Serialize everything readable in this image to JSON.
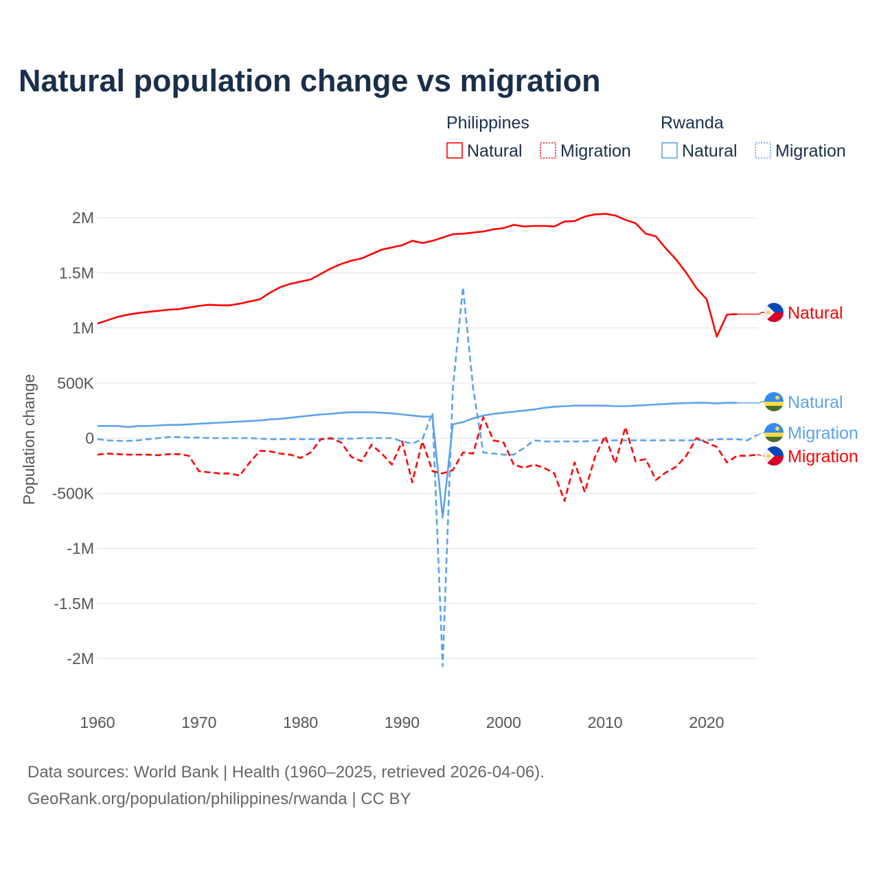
{
  "title": "Natural population change vs migration",
  "legend": {
    "groups": [
      {
        "name": "Philippines",
        "items": [
          {
            "label": "Natural",
            "style": "solid"
          },
          {
            "label": "Migration",
            "style": "dotted"
          }
        ],
        "color": "#ff0000"
      },
      {
        "name": "Rwanda",
        "items": [
          {
            "label": "Natural",
            "style": "solid"
          },
          {
            "label": "Migration",
            "style": "dotted"
          }
        ],
        "color": "#5ba3ea"
      }
    ]
  },
  "footer": {
    "line1": "Data sources: World Bank | Health (1960–2025, retrieved 2026-04-06).",
    "line2": "GeoRank.org/population/philippines/rwanda | CC BY"
  },
  "chart_data": {
    "type": "line",
    "title": "Natural population change vs migration",
    "xlabel": "",
    "ylabel": "Population change",
    "units": "millions of people",
    "xlim": [
      1960,
      2025
    ],
    "ylim": [
      -2.3,
      2.2
    ],
    "grid": true,
    "legend_position": "top-right",
    "x_ticks": [
      1960,
      1970,
      1980,
      1990,
      2000,
      2010,
      2020
    ],
    "y_ticks": [
      {
        "value": 2,
        "label": "2M"
      },
      {
        "value": 1.5,
        "label": "1.5M"
      },
      {
        "value": 1,
        "label": "1M"
      },
      {
        "value": 0.5,
        "label": "500K"
      },
      {
        "value": 0,
        "label": "0"
      },
      {
        "value": -0.5,
        "label": "-500K"
      },
      {
        "value": -1,
        "label": "-1M"
      },
      {
        "value": -1.5,
        "label": "-1.5M"
      },
      {
        "value": -2,
        "label": "-2M"
      }
    ],
    "series": [
      {
        "name": "Philippines Natural",
        "end_label": "Natural",
        "flag": "philippines",
        "color": "#ff0000",
        "dash": "solid",
        "start": 1960,
        "values": [
          1.04,
          1.07,
          1.1,
          1.12,
          1.135,
          1.145,
          1.155,
          1.165,
          1.17,
          1.185,
          1.2,
          1.21,
          1.205,
          1.205,
          1.22,
          1.24,
          1.26,
          1.32,
          1.37,
          1.4,
          1.42,
          1.44,
          1.49,
          1.54,
          1.58,
          1.61,
          1.63,
          1.67,
          1.71,
          1.73,
          1.75,
          1.79,
          1.77,
          1.79,
          1.82,
          1.85,
          1.855,
          1.865,
          1.875,
          1.895,
          1.905,
          1.935,
          1.92,
          1.925,
          1.925,
          1.92,
          1.965,
          1.97,
          2.01,
          2.03,
          2.035,
          2.02,
          1.98,
          1.95,
          1.855,
          1.83,
          1.72,
          1.62,
          1.5,
          1.36,
          1.26,
          0.92,
          1.12,
          1.125
        ]
      },
      {
        "name": "Rwanda Natural",
        "end_label": "Natural",
        "flag": "rwanda",
        "color": "#5ba3ea",
        "dash": "solid",
        "start": 1960,
        "values": [
          0.11,
          0.11,
          0.11,
          0.1,
          0.11,
          0.11,
          0.115,
          0.12,
          0.12,
          0.125,
          0.13,
          0.135,
          0.14,
          0.145,
          0.15,
          0.155,
          0.16,
          0.17,
          0.175,
          0.185,
          0.195,
          0.205,
          0.215,
          0.22,
          0.23,
          0.235,
          0.235,
          0.235,
          0.23,
          0.225,
          0.215,
          0.205,
          0.195,
          0.195,
          -0.72,
          0.125,
          0.145,
          0.18,
          0.205,
          0.22,
          0.23,
          0.24,
          0.25,
          0.26,
          0.275,
          0.285,
          0.29,
          0.295,
          0.295,
          0.295,
          0.295,
          0.29,
          0.29,
          0.295,
          0.3,
          0.305,
          0.31,
          0.315,
          0.318,
          0.32,
          0.32,
          0.315,
          0.32,
          0.32
        ]
      },
      {
        "name": "Rwanda Migration",
        "end_label": "Migration",
        "flag": "rwanda",
        "color": "#5ba3ea",
        "dash": "dashed",
        "start": 1960,
        "values": [
          -0.01,
          -0.02,
          -0.025,
          -0.025,
          -0.02,
          -0.01,
          0,
          0.01,
          0.01,
          0.005,
          0.005,
          0,
          0,
          0,
          0,
          0,
          -0.005,
          -0.01,
          -0.01,
          -0.01,
          -0.01,
          -0.01,
          -0.01,
          -0.005,
          -0.005,
          -0.005,
          0,
          0,
          0,
          0,
          -0.03,
          -0.05,
          -0.01,
          0.23,
          -2.07,
          0.45,
          1.37,
          0.45,
          -0.13,
          -0.14,
          -0.15,
          -0.15,
          -0.09,
          -0.02,
          -0.03,
          -0.03,
          -0.03,
          -0.03,
          -0.03,
          -0.02,
          -0.02,
          -0.02,
          -0.02,
          -0.02,
          -0.02,
          -0.02,
          -0.02,
          -0.02,
          -0.02,
          -0.02,
          -0.02,
          -0.01,
          -0.01,
          -0.01,
          -0.02,
          0.03
        ]
      },
      {
        "name": "Philippines Migration",
        "end_label": "Migration",
        "flag": "philippines",
        "color": "#ff0000",
        "dash": "dashed",
        "start": 1960,
        "values": [
          -0.15,
          -0.14,
          -0.145,
          -0.15,
          -0.15,
          -0.15,
          -0.155,
          -0.145,
          -0.145,
          -0.16,
          -0.3,
          -0.31,
          -0.32,
          -0.32,
          -0.34,
          -0.22,
          -0.115,
          -0.12,
          -0.14,
          -0.15,
          -0.18,
          -0.13,
          -0.01,
          0,
          -0.04,
          -0.17,
          -0.21,
          -0.06,
          -0.14,
          -0.24,
          -0.03,
          -0.4,
          -0.03,
          -0.3,
          -0.32,
          -0.29,
          -0.13,
          -0.14,
          0.19,
          -0.02,
          -0.04,
          -0.24,
          -0.27,
          -0.24,
          -0.27,
          -0.32,
          -0.57,
          -0.22,
          -0.49,
          -0.17,
          0.02,
          -0.23,
          0.1,
          -0.21,
          -0.19,
          -0.38,
          -0.31,
          -0.26,
          -0.16,
          0,
          -0.04,
          -0.08,
          -0.22,
          -0.16,
          -0.16,
          -0.15
        ]
      }
    ]
  }
}
